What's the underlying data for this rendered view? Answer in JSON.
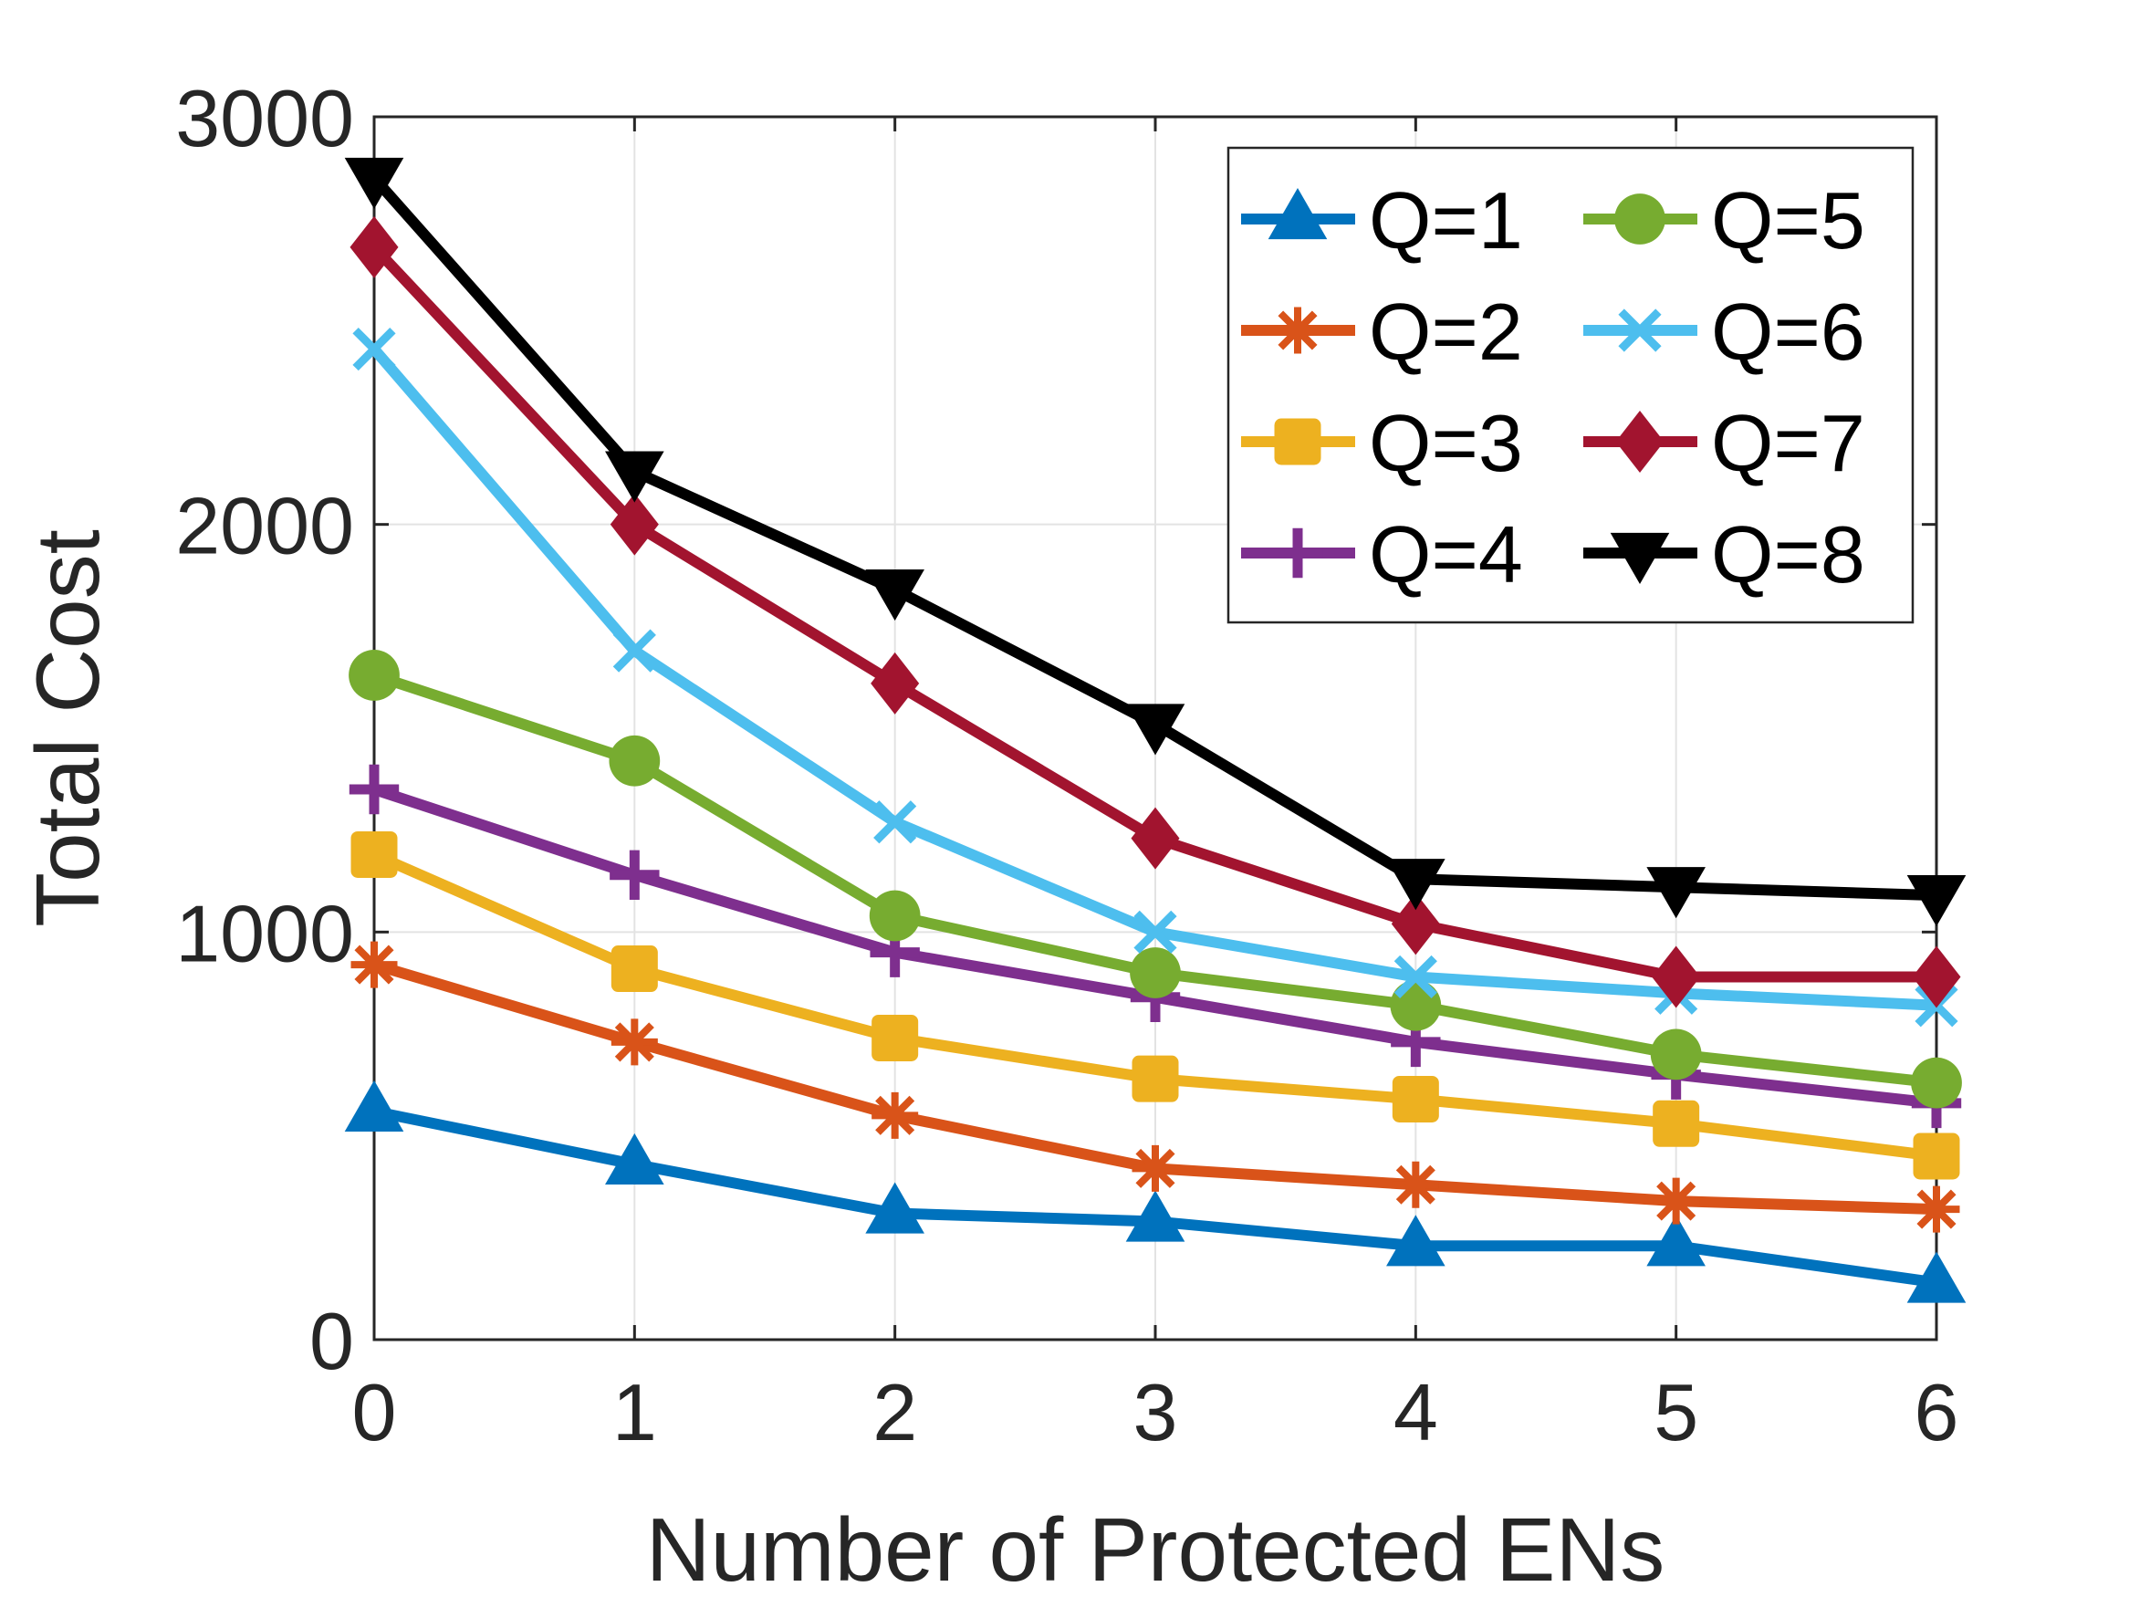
{
  "chart_data": {
    "type": "line",
    "title": "",
    "xlabel": "Number of Protected ENs",
    "ylabel": "Total Cost",
    "x": [
      0,
      1,
      2,
      3,
      4,
      5,
      6
    ],
    "xlim": [
      0,
      6
    ],
    "ylim": [
      0,
      3000
    ],
    "xticks": [
      "0",
      "1",
      "2",
      "3",
      "4",
      "5",
      "6"
    ],
    "yticks": [
      "0",
      "1000",
      "2000",
      "3000"
    ],
    "ytick_values": [
      0,
      1000,
      2000,
      3000
    ],
    "grid": true,
    "legend_position": "top-right",
    "series": [
      {
        "name": "Q=1",
        "color": "#0072BD",
        "marker": "triangle-up",
        "values": [
          560,
          430,
          310,
          290,
          230,
          230,
          140
        ]
      },
      {
        "name": "Q=2",
        "color": "#D95319",
        "marker": "asterisk",
        "values": [
          920,
          730,
          550,
          420,
          380,
          340,
          320
        ]
      },
      {
        "name": "Q=3",
        "color": "#EDB120",
        "marker": "square",
        "values": [
          1190,
          910,
          740,
          640,
          590,
          530,
          450
        ]
      },
      {
        "name": "Q=4",
        "color": "#7E2F8E",
        "marker": "plus",
        "values": [
          1350,
          1140,
          950,
          840,
          730,
          650,
          580
        ]
      },
      {
        "name": "Q=5",
        "color": "#77AC30",
        "marker": "circle",
        "values": [
          1630,
          1420,
          1040,
          900,
          820,
          700,
          630
        ]
      },
      {
        "name": "Q=6",
        "color": "#4DBEEE",
        "marker": "x",
        "values": [
          2430,
          1690,
          1270,
          1000,
          890,
          850,
          820
        ]
      },
      {
        "name": "Q=7",
        "color": "#A2142F",
        "marker": "diamond",
        "values": [
          2680,
          2000,
          1610,
          1230,
          1020,
          890,
          890
        ]
      },
      {
        "name": "Q=8",
        "color": "#000000",
        "marker": "triangle-down",
        "values": [
          2850,
          2130,
          1840,
          1510,
          1130,
          1110,
          1090
        ]
      }
    ]
  }
}
